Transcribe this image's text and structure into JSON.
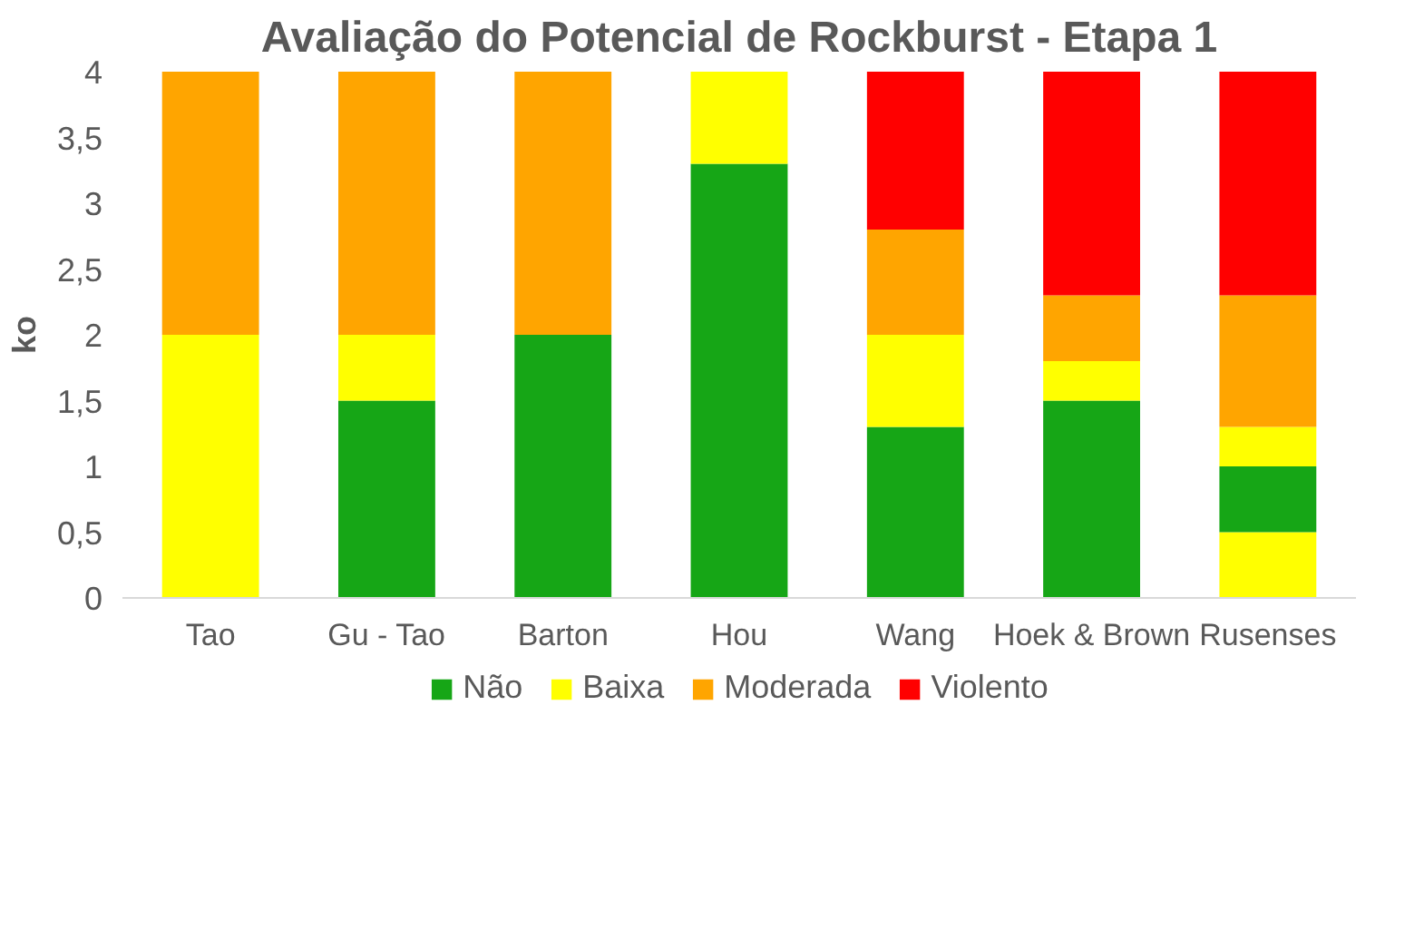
{
  "chart_data": {
    "type": "bar",
    "stacked": true,
    "title": "Avaliação do Potencial de Rockburst - Etapa 1",
    "ylabel": "ko",
    "categories": [
      "Tao",
      "Gu - Tao",
      "Barton",
      "Hou",
      "Wang",
      "Hoek & Brown",
      "Rusenses"
    ],
    "series": [
      {
        "color": "#ffff00",
        "values": [
          0,
          0,
          0,
          0,
          0,
          0,
          0.5
        ]
      },
      {
        "name": "Não",
        "color": "#16a616",
        "values": [
          0,
          1.5,
          2,
          3.3,
          1.3,
          1.5,
          0.5
        ]
      },
      {
        "name": "Baixa",
        "color": "#ffff00",
        "values": [
          2,
          0.5,
          0,
          0.7,
          0.7,
          0.3,
          0.3
        ]
      },
      {
        "name": "Moderada",
        "color": "#ffa500",
        "values": [
          2,
          2,
          2,
          0,
          0.8,
          0.5,
          1.0
        ]
      },
      {
        "name": "Violento",
        "color": "#ff0000",
        "values": [
          0,
          0,
          0,
          0,
          1.2,
          1.7,
          1.7
        ]
      }
    ],
    "ylim": [
      0,
      4
    ],
    "yticks": [
      0,
      {
        "value": 0.5,
        "label": "0,5"
      },
      1,
      {
        "value": 1.5,
        "label": "1,5"
      },
      2,
      {
        "value": 2.5,
        "label": "2,5"
      },
      3,
      {
        "value": 3.5,
        "label": "3,5"
      },
      4
    ],
    "grid": false,
    "legend": "bottom"
  }
}
